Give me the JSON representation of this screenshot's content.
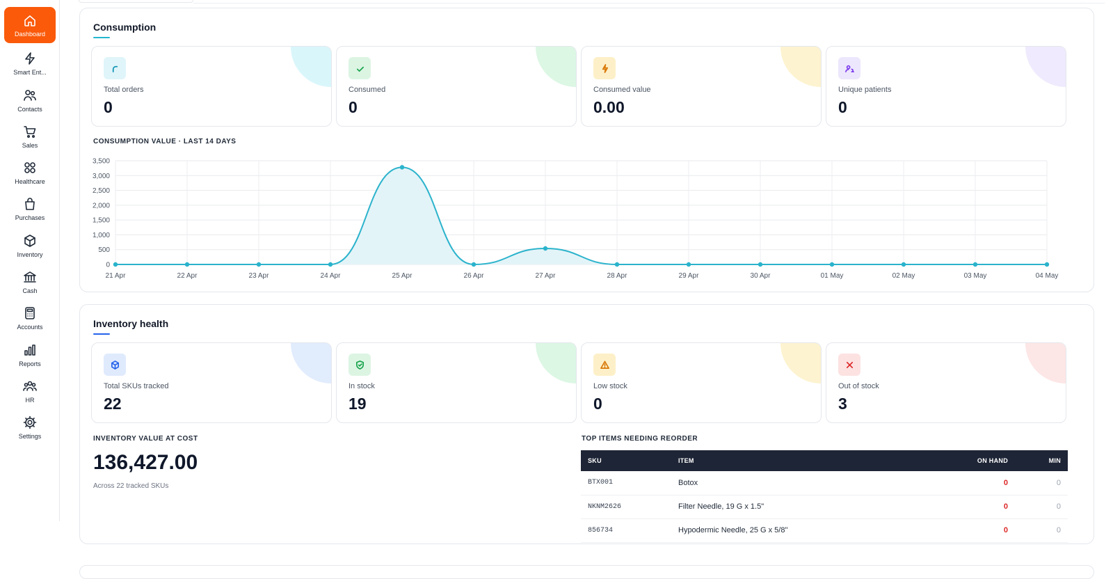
{
  "sidebar": {
    "items": [
      {
        "label": "Dashboard",
        "icon": "home-icon",
        "active": true
      },
      {
        "label": "Smart Ent...",
        "icon": "lightning-icon"
      },
      {
        "label": "Contacts",
        "icon": "users-icon"
      },
      {
        "label": "Sales",
        "icon": "cart-icon"
      },
      {
        "label": "Healthcare",
        "icon": "grid-icon"
      },
      {
        "label": "Purchases",
        "icon": "bag-icon"
      },
      {
        "label": "Inventory",
        "icon": "box-icon"
      },
      {
        "label": "Cash",
        "icon": "bank-icon"
      },
      {
        "label": "Accounts",
        "icon": "calculator-icon"
      },
      {
        "label": "Reports",
        "icon": "bar-chart-icon"
      },
      {
        "label": "HR",
        "icon": "team-icon"
      },
      {
        "label": "Settings",
        "icon": "gear-icon"
      }
    ]
  },
  "consumption": {
    "title": "Consumption",
    "accent": "#22b8cf",
    "cards": [
      {
        "label": "Total orders",
        "value": "0",
        "icon": "refresh-icon",
        "color": "#0891b2",
        "bg": "#dff5fa",
        "deco": "#d9f6fb"
      },
      {
        "label": "Consumed",
        "value": "0",
        "icon": "check-icon",
        "color": "#16a34a",
        "bg": "#dcf5e3",
        "deco": "#dcf7e4"
      },
      {
        "label": "Consumed value",
        "value": "0.00",
        "icon": "bolt-icon",
        "color": "#d97706",
        "bg": "#fdf0c8",
        "deco": "#fdf3d0"
      },
      {
        "label": "Unique patients",
        "value": "0",
        "icon": "patients-icon",
        "color": "#7c3aed",
        "bg": "#ede7fd",
        "deco": "#efeafd"
      }
    ],
    "chart_caption": "CONSUMPTION VALUE · LAST 14 DAYS"
  },
  "chart_data": {
    "type": "area",
    "title": "CONSUMPTION VALUE · LAST 14 DAYS",
    "xlabel": "",
    "ylabel": "",
    "categories": [
      "21 Apr",
      "22 Apr",
      "23 Apr",
      "24 Apr",
      "25 Apr",
      "26 Apr",
      "27 Apr",
      "28 Apr",
      "29 Apr",
      "30 Apr",
      "01 May",
      "02 May",
      "03 May",
      "04 May"
    ],
    "values": [
      0,
      0,
      0,
      0,
      3280,
      0,
      540,
      0,
      0,
      0,
      0,
      0,
      0,
      0
    ],
    "ylim": [
      0,
      3500
    ],
    "yticks": [
      "0",
      "500",
      "1,000",
      "1,500",
      "2,000",
      "2,500",
      "3,000",
      "3,500"
    ],
    "grid": true,
    "color": "#2bb3cc",
    "fill": "#e3f4f8"
  },
  "inventory": {
    "title": "Inventory health",
    "accent": "#2563eb",
    "cards": [
      {
        "label": "Total SKUs tracked",
        "value": "22",
        "icon": "cube-icon",
        "color": "#2563eb",
        "bg": "#dfeafd",
        "deco": "#e1ecfd"
      },
      {
        "label": "In stock",
        "value": "19",
        "icon": "shield-check-icon",
        "color": "#16a34a",
        "bg": "#dcf5e3",
        "deco": "#dcf7e4"
      },
      {
        "label": "Low stock",
        "value": "0",
        "icon": "warning-icon",
        "color": "#d97706",
        "bg": "#fdf0c8",
        "deco": "#fdf3d0"
      },
      {
        "label": "Out of stock",
        "value": "3",
        "icon": "x-icon",
        "color": "#dc2626",
        "bg": "#fde2e2",
        "deco": "#fde6e6"
      }
    ],
    "value_caption": "INVENTORY VALUE AT COST",
    "value": "136,427.00",
    "value_note": "Across 22 tracked SKUs",
    "reorder_caption": "TOP ITEMS NEEDING REORDER",
    "reorder_headers": {
      "sku": "SKU",
      "item": "ITEM",
      "on_hand": "ON HAND",
      "min": "MIN"
    },
    "reorder_rows": [
      {
        "sku": "BTX001",
        "item": "Botox",
        "on_hand": "0",
        "min": "0"
      },
      {
        "sku": "NKNM2626",
        "item": "Filter Needle, 19 G x 1.5\"",
        "on_hand": "0",
        "min": "0"
      },
      {
        "sku": "856734",
        "item": "Hypodermic Needle, 25 G x 5/8\"",
        "on_hand": "0",
        "min": "0"
      }
    ]
  }
}
